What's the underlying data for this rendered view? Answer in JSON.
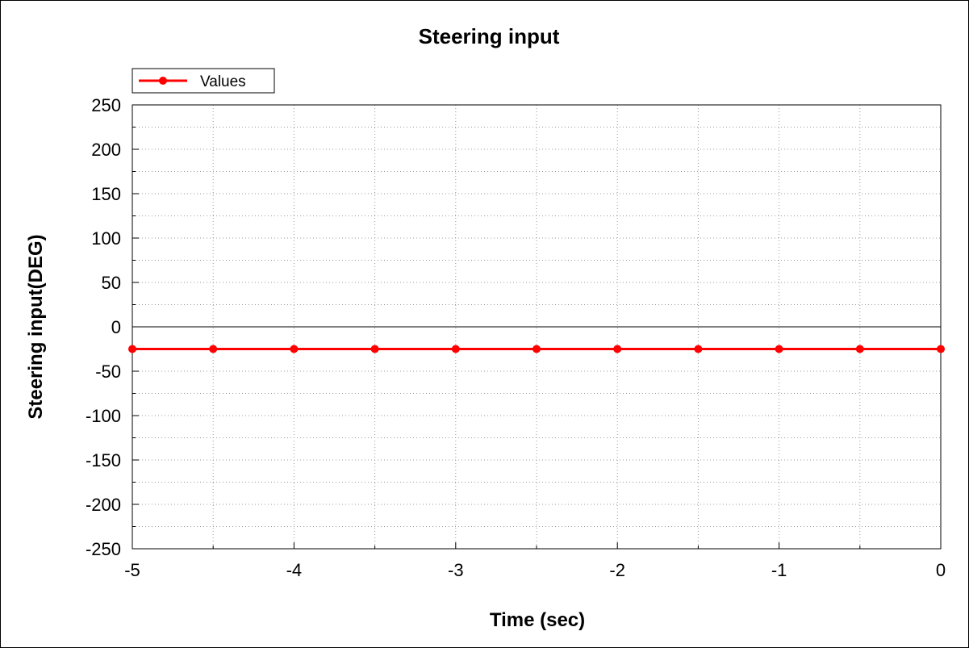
{
  "chart_data": {
    "type": "line",
    "title": "Steering input",
    "xlabel": "Time (sec)",
    "ylabel": "Steering input(DEG)",
    "xlim": [
      -5,
      0
    ],
    "ylim": [
      -250,
      250
    ],
    "x_ticks": [
      "-5",
      "-4",
      "-3",
      "-2",
      "-1",
      "0"
    ],
    "x_tick_values": [
      -5,
      -4,
      -3,
      -2,
      -1,
      0
    ],
    "y_ticks": [
      "250",
      "200",
      "150",
      "100",
      "50",
      "0",
      "-50",
      "-100",
      "-150",
      "-200",
      "-250"
    ],
    "y_tick_values": [
      250,
      200,
      150,
      100,
      50,
      0,
      -50,
      -100,
      -150,
      -200,
      -250
    ],
    "grid": true,
    "legend_position": "top-left",
    "series": [
      {
        "name": "Values",
        "color": "#ff0000",
        "marker": "circle",
        "x": [
          -5,
          -4.5,
          -4,
          -3.5,
          -3,
          -2.5,
          -2,
          -1.5,
          -1,
          -0.5,
          0
        ],
        "y": [
          -25,
          -25,
          -25,
          -25,
          -25,
          -25,
          -25,
          -25,
          -25,
          -25,
          -25
        ]
      }
    ]
  }
}
